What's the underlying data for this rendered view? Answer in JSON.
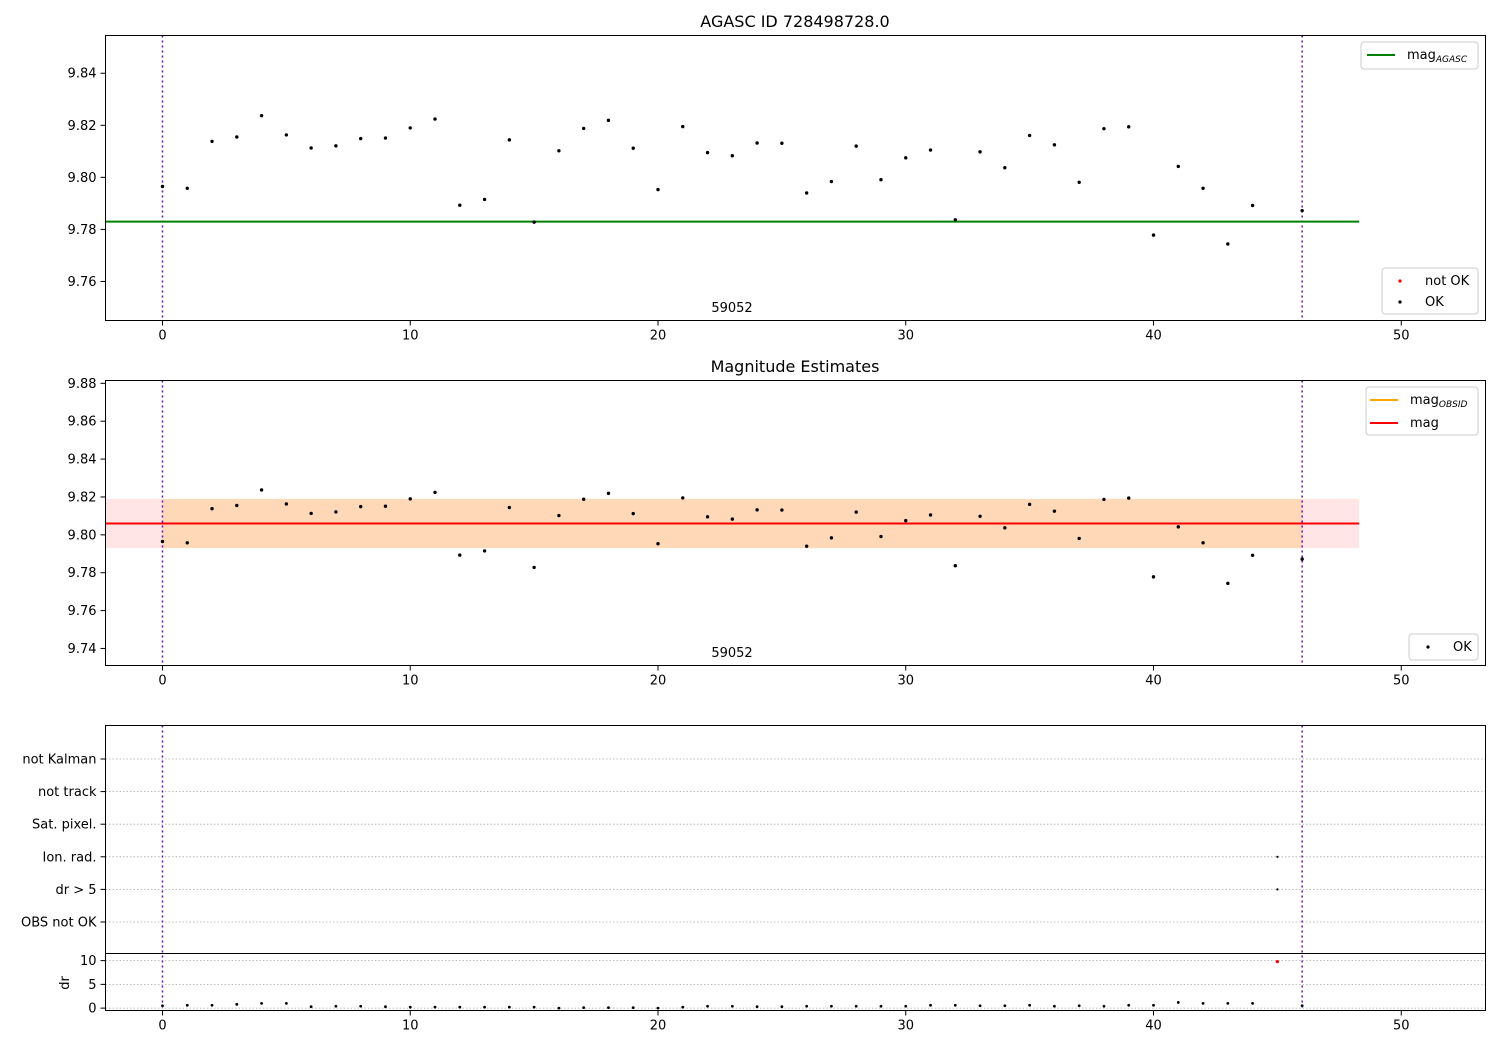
{
  "chart_data": [
    {
      "type": "scatter",
      "title": "AGASC ID 728498728.0",
      "xlim": [
        -2.3,
        53.4
      ],
      "ylim": [
        9.745,
        9.8545
      ],
      "x_ticks": [
        0,
        10,
        20,
        30,
        40,
        50
      ],
      "y_ticks": [
        "9.76",
        "9.78",
        "9.80",
        "9.82",
        "9.84"
      ],
      "obs_label": "59052",
      "vlines": [
        0,
        46
      ],
      "mag_agasc": 9.783,
      "legend_top": [
        {
          "label": "mag",
          "sub": "AGASC",
          "color": "#008000"
        }
      ],
      "legend_bottom": [
        {
          "label": "not OK",
          "color": "#ff0000"
        },
        {
          "label": "OK",
          "color": "#000000"
        }
      ],
      "series": [
        {
          "name": "OK",
          "x": [
            0,
            1,
            2,
            3,
            4,
            5,
            6,
            7,
            8,
            9,
            10,
            11,
            12,
            13,
            14,
            15,
            16,
            17,
            18,
            19,
            20,
            21,
            22,
            23,
            24,
            25,
            26,
            27,
            28,
            29,
            30,
            31,
            32,
            33,
            34,
            35,
            36,
            37,
            38,
            39,
            40,
            41,
            42,
            43,
            44,
            46
          ],
          "y": [
            9.7965,
            9.7958,
            9.8138,
            9.8155,
            9.8237,
            9.8163,
            9.8113,
            9.8121,
            9.8149,
            9.8151,
            9.819,
            9.8224,
            9.7893,
            9.7915,
            9.8144,
            9.7828,
            9.8102,
            9.8188,
            9.8219,
            9.8112,
            9.7953,
            9.8195,
            9.8095,
            9.8083,
            9.8132,
            9.8131,
            9.794,
            9.7984,
            9.812,
            9.7991,
            9.8075,
            9.8105,
            9.7837,
            9.8098,
            9.8037,
            9.8161,
            9.8125,
            9.7981,
            9.8187,
            9.8194,
            9.7778,
            9.8042,
            9.7958,
            9.7744,
            9.7892,
            9.7872
          ]
        }
      ]
    },
    {
      "type": "scatter",
      "title": "Magnitude Estimates",
      "xlim": [
        -2.3,
        53.4
      ],
      "ylim": [
        9.731,
        9.8815
      ],
      "x_ticks": [
        0,
        10,
        20,
        30,
        40,
        50
      ],
      "y_ticks": [
        "9.74",
        "9.76",
        "9.78",
        "9.80",
        "9.82",
        "9.84",
        "9.86",
        "9.88"
      ],
      "obs_label": "59052",
      "vlines": [
        0,
        46
      ],
      "mag": 9.806,
      "mag_band": [
        9.793,
        9.819
      ],
      "mag_obsid": 9.806,
      "mag_obsid_band": [
        9.793,
        9.819
      ],
      "legend_top": [
        {
          "label": "mag",
          "sub": "OBSID",
          "color": "#ffa500"
        },
        {
          "label": "mag",
          "sub": "",
          "color": "#ff0000"
        }
      ],
      "legend_bottom": [
        {
          "label": "OK",
          "color": "#000000"
        }
      ],
      "series": [
        {
          "name": "OK",
          "x": [
            0,
            1,
            2,
            3,
            4,
            5,
            6,
            7,
            8,
            9,
            10,
            11,
            12,
            13,
            14,
            15,
            16,
            17,
            18,
            19,
            20,
            21,
            22,
            23,
            24,
            25,
            26,
            27,
            28,
            29,
            30,
            31,
            32,
            33,
            34,
            35,
            36,
            37,
            38,
            39,
            40,
            41,
            42,
            43,
            44,
            46
          ],
          "y": [
            9.7965,
            9.7958,
            9.8138,
            9.8155,
            9.8237,
            9.8163,
            9.8113,
            9.8121,
            9.8149,
            9.8151,
            9.819,
            9.8224,
            9.7893,
            9.7915,
            9.8144,
            9.7828,
            9.8102,
            9.8188,
            9.8219,
            9.8112,
            9.7953,
            9.8195,
            9.8095,
            9.8083,
            9.8132,
            9.8131,
            9.794,
            9.7984,
            9.812,
            9.7991,
            9.8075,
            9.8105,
            9.7837,
            9.8098,
            9.8037,
            9.8161,
            9.8125,
            9.7981,
            9.8187,
            9.8194,
            9.7778,
            9.8042,
            9.7958,
            9.7744,
            9.7892,
            9.7872
          ]
        }
      ]
    },
    {
      "type": "scatter",
      "title": "",
      "xlim": [
        -2.3,
        53.4
      ],
      "x_ticks": [
        0,
        10,
        20,
        30,
        40,
        50
      ],
      "vlines": [
        0,
        46
      ],
      "flag_rows": [
        "not Kalman",
        "not track",
        "Sat. pixel.",
        "Ion. rad.",
        "dr > 5",
        "OBS not OK"
      ],
      "flags": [
        {
          "row": "Ion. rad.",
          "x": 45
        },
        {
          "row": "dr > 5",
          "x": 45
        }
      ],
      "ylabel": "dr",
      "y_ticks": [
        "0",
        "5",
        "10"
      ],
      "dr_ylim": [
        -0.5,
        11.5
      ],
      "dr_ok": {
        "x": [
          0,
          1,
          2,
          3,
          4,
          5,
          6,
          7,
          8,
          9,
          10,
          11,
          12,
          13,
          14,
          15,
          16,
          17,
          18,
          19,
          20,
          21,
          22,
          23,
          24,
          25,
          26,
          27,
          28,
          29,
          30,
          31,
          32,
          33,
          34,
          35,
          36,
          37,
          38,
          39,
          40,
          41,
          42,
          43,
          44,
          46
        ],
        "y": [
          0.5,
          0.6,
          0.6,
          0.8,
          1.0,
          1.0,
          0.3,
          0.4,
          0.4,
          0.3,
          0.2,
          0.2,
          0.2,
          0.2,
          0.2,
          0.2,
          0.0,
          0.1,
          0.1,
          0.1,
          0.0,
          0.2,
          0.4,
          0.4,
          0.3,
          0.3,
          0.4,
          0.4,
          0.4,
          0.4,
          0.4,
          0.6,
          0.6,
          0.5,
          0.5,
          0.6,
          0.4,
          0.5,
          0.4,
          0.6,
          0.6,
          1.2,
          1.0,
          1.0,
          1.0,
          0.5
        ]
      },
      "dr_not_ok": {
        "x": [
          45
        ],
        "y": [
          9.8
        ]
      }
    }
  ]
}
